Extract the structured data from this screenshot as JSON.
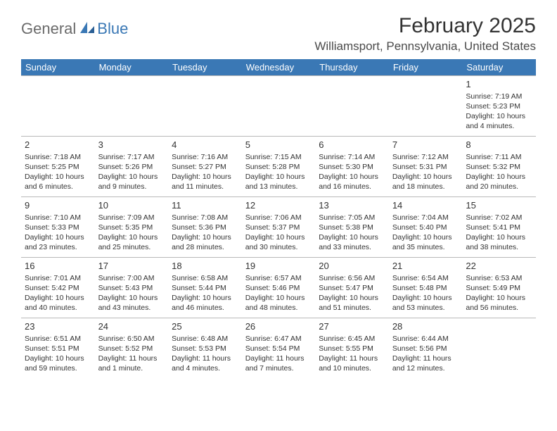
{
  "logo": {
    "general": "General",
    "blue": "Blue"
  },
  "header": {
    "month_title": "February 2025",
    "location": "Williamsport, Pennsylvania, United States"
  },
  "colors": {
    "header_bg": "#3a78b5",
    "header_text": "#ffffff",
    "body_text": "#333333",
    "divider": "#b8b8b8",
    "logo_gray": "#6b6b6b",
    "logo_blue": "#3a78b5",
    "page_bg": "#ffffff"
  },
  "weekdays": [
    "Sunday",
    "Monday",
    "Tuesday",
    "Wednesday",
    "Thursday",
    "Friday",
    "Saturday"
  ],
  "weeks": [
    [
      null,
      null,
      null,
      null,
      null,
      null,
      {
        "n": "1",
        "sr": "Sunrise: 7:19 AM",
        "ss": "Sunset: 5:23 PM",
        "d1": "Daylight: 10 hours",
        "d2": "and 4 minutes."
      }
    ],
    [
      {
        "n": "2",
        "sr": "Sunrise: 7:18 AM",
        "ss": "Sunset: 5:25 PM",
        "d1": "Daylight: 10 hours",
        "d2": "and 6 minutes."
      },
      {
        "n": "3",
        "sr": "Sunrise: 7:17 AM",
        "ss": "Sunset: 5:26 PM",
        "d1": "Daylight: 10 hours",
        "d2": "and 9 minutes."
      },
      {
        "n": "4",
        "sr": "Sunrise: 7:16 AM",
        "ss": "Sunset: 5:27 PM",
        "d1": "Daylight: 10 hours",
        "d2": "and 11 minutes."
      },
      {
        "n": "5",
        "sr": "Sunrise: 7:15 AM",
        "ss": "Sunset: 5:28 PM",
        "d1": "Daylight: 10 hours",
        "d2": "and 13 minutes."
      },
      {
        "n": "6",
        "sr": "Sunrise: 7:14 AM",
        "ss": "Sunset: 5:30 PM",
        "d1": "Daylight: 10 hours",
        "d2": "and 16 minutes."
      },
      {
        "n": "7",
        "sr": "Sunrise: 7:12 AM",
        "ss": "Sunset: 5:31 PM",
        "d1": "Daylight: 10 hours",
        "d2": "and 18 minutes."
      },
      {
        "n": "8",
        "sr": "Sunrise: 7:11 AM",
        "ss": "Sunset: 5:32 PM",
        "d1": "Daylight: 10 hours",
        "d2": "and 20 minutes."
      }
    ],
    [
      {
        "n": "9",
        "sr": "Sunrise: 7:10 AM",
        "ss": "Sunset: 5:33 PM",
        "d1": "Daylight: 10 hours",
        "d2": "and 23 minutes."
      },
      {
        "n": "10",
        "sr": "Sunrise: 7:09 AM",
        "ss": "Sunset: 5:35 PM",
        "d1": "Daylight: 10 hours",
        "d2": "and 25 minutes."
      },
      {
        "n": "11",
        "sr": "Sunrise: 7:08 AM",
        "ss": "Sunset: 5:36 PM",
        "d1": "Daylight: 10 hours",
        "d2": "and 28 minutes."
      },
      {
        "n": "12",
        "sr": "Sunrise: 7:06 AM",
        "ss": "Sunset: 5:37 PM",
        "d1": "Daylight: 10 hours",
        "d2": "and 30 minutes."
      },
      {
        "n": "13",
        "sr": "Sunrise: 7:05 AM",
        "ss": "Sunset: 5:38 PM",
        "d1": "Daylight: 10 hours",
        "d2": "and 33 minutes."
      },
      {
        "n": "14",
        "sr": "Sunrise: 7:04 AM",
        "ss": "Sunset: 5:40 PM",
        "d1": "Daylight: 10 hours",
        "d2": "and 35 minutes."
      },
      {
        "n": "15",
        "sr": "Sunrise: 7:02 AM",
        "ss": "Sunset: 5:41 PM",
        "d1": "Daylight: 10 hours",
        "d2": "and 38 minutes."
      }
    ],
    [
      {
        "n": "16",
        "sr": "Sunrise: 7:01 AM",
        "ss": "Sunset: 5:42 PM",
        "d1": "Daylight: 10 hours",
        "d2": "and 40 minutes."
      },
      {
        "n": "17",
        "sr": "Sunrise: 7:00 AM",
        "ss": "Sunset: 5:43 PM",
        "d1": "Daylight: 10 hours",
        "d2": "and 43 minutes."
      },
      {
        "n": "18",
        "sr": "Sunrise: 6:58 AM",
        "ss": "Sunset: 5:44 PM",
        "d1": "Daylight: 10 hours",
        "d2": "and 46 minutes."
      },
      {
        "n": "19",
        "sr": "Sunrise: 6:57 AM",
        "ss": "Sunset: 5:46 PM",
        "d1": "Daylight: 10 hours",
        "d2": "and 48 minutes."
      },
      {
        "n": "20",
        "sr": "Sunrise: 6:56 AM",
        "ss": "Sunset: 5:47 PM",
        "d1": "Daylight: 10 hours",
        "d2": "and 51 minutes."
      },
      {
        "n": "21",
        "sr": "Sunrise: 6:54 AM",
        "ss": "Sunset: 5:48 PM",
        "d1": "Daylight: 10 hours",
        "d2": "and 53 minutes."
      },
      {
        "n": "22",
        "sr": "Sunrise: 6:53 AM",
        "ss": "Sunset: 5:49 PM",
        "d1": "Daylight: 10 hours",
        "d2": "and 56 minutes."
      }
    ],
    [
      {
        "n": "23",
        "sr": "Sunrise: 6:51 AM",
        "ss": "Sunset: 5:51 PM",
        "d1": "Daylight: 10 hours",
        "d2": "and 59 minutes."
      },
      {
        "n": "24",
        "sr": "Sunrise: 6:50 AM",
        "ss": "Sunset: 5:52 PM",
        "d1": "Daylight: 11 hours",
        "d2": "and 1 minute."
      },
      {
        "n": "25",
        "sr": "Sunrise: 6:48 AM",
        "ss": "Sunset: 5:53 PM",
        "d1": "Daylight: 11 hours",
        "d2": "and 4 minutes."
      },
      {
        "n": "26",
        "sr": "Sunrise: 6:47 AM",
        "ss": "Sunset: 5:54 PM",
        "d1": "Daylight: 11 hours",
        "d2": "and 7 minutes."
      },
      {
        "n": "27",
        "sr": "Sunrise: 6:45 AM",
        "ss": "Sunset: 5:55 PM",
        "d1": "Daylight: 11 hours",
        "d2": "and 10 minutes."
      },
      {
        "n": "28",
        "sr": "Sunrise: 6:44 AM",
        "ss": "Sunset: 5:56 PM",
        "d1": "Daylight: 11 hours",
        "d2": "and 12 minutes."
      },
      null
    ]
  ]
}
